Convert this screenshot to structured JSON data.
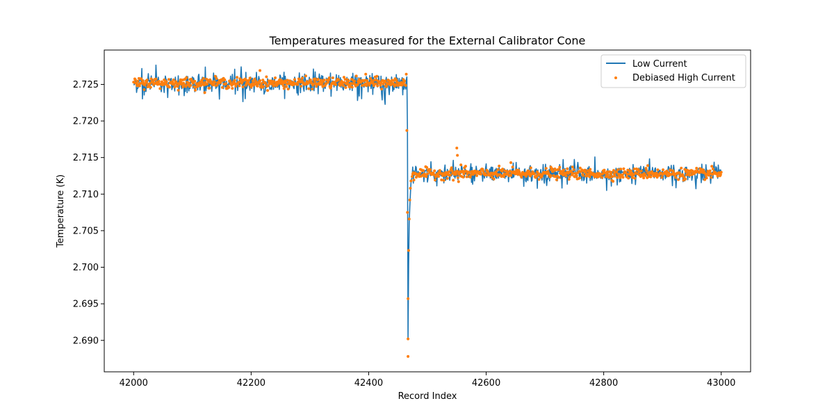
{
  "chart_data": {
    "type": "line",
    "title": "Temperatures measured for the External Calibrator Cone",
    "xlabel": "Record Index",
    "ylabel": "Temperature (K)",
    "xlim": [
      41950,
      43050
    ],
    "ylim": [
      2.6857,
      2.7297
    ],
    "x_ticks": [
      42000,
      42200,
      42400,
      42600,
      42800,
      43000
    ],
    "x_tick_labels": [
      "42000",
      "42200",
      "42400",
      "42600",
      "42800",
      "43000"
    ],
    "y_ticks": [
      2.69,
      2.695,
      2.7,
      2.705,
      2.71,
      2.715,
      2.72,
      2.725
    ],
    "y_tick_labels": [
      "2.690",
      "2.695",
      "2.700",
      "2.705",
      "2.710",
      "2.715",
      "2.720",
      "2.725"
    ],
    "grid": false,
    "legend_position": "top-right",
    "colors": {
      "low": "#1f77b4",
      "high": "#ff7f0e"
    },
    "series": [
      {
        "name": "Low Current",
        "style": "line",
        "x_start": 42000,
        "x_end": 43000,
        "baseline_before": 2.7252,
        "baseline_after": 2.7128,
        "step_at": 42466,
        "minimum": {
          "x": 42467,
          "y": 2.6902
        },
        "noise_sd_before": 0.0009,
        "noise_sd_after": 0.0007
      },
      {
        "name": "Debiased High Current",
        "style": "points",
        "x_start": 42000,
        "x_end": 43000,
        "baseline_before": 2.7252,
        "baseline_after": 2.7128,
        "step_at": 42466,
        "transition_points": [
          {
            "x": 42464,
            "y": 2.7264
          },
          {
            "x": 42465,
            "y": 2.7187
          },
          {
            "x": 42466,
            "y": 2.7075
          },
          {
            "x": 42467,
            "y": 2.6957
          },
          {
            "x": 42467,
            "y": 2.6878
          },
          {
            "x": 42467,
            "y": 2.6902
          },
          {
            "x": 42468,
            "y": 2.7023
          },
          {
            "x": 42469,
            "y": 2.7066
          },
          {
            "x": 42470,
            "y": 2.7092
          },
          {
            "x": 42471,
            "y": 2.7108
          },
          {
            "x": 42472,
            "y": 2.7118
          },
          {
            "x": 42474,
            "y": 2.7124
          }
        ],
        "notable_points": [
          {
            "x": 42215,
            "y": 2.7269
          },
          {
            "x": 42395,
            "y": 2.7264
          },
          {
            "x": 42550,
            "y": 2.7163
          },
          {
            "x": 42551,
            "y": 2.7153
          },
          {
            "x": 42553,
            "y": 2.7117
          },
          {
            "x": 42557,
            "y": 2.714
          },
          {
            "x": 42563,
            "y": 2.7136
          },
          {
            "x": 42642,
            "y": 2.7143
          },
          {
            "x": 42710,
            "y": 2.7137
          },
          {
            "x": 42875,
            "y": 2.7139
          }
        ],
        "noise_sd_before": 0.00035,
        "noise_sd_after": 0.00035
      }
    ]
  }
}
